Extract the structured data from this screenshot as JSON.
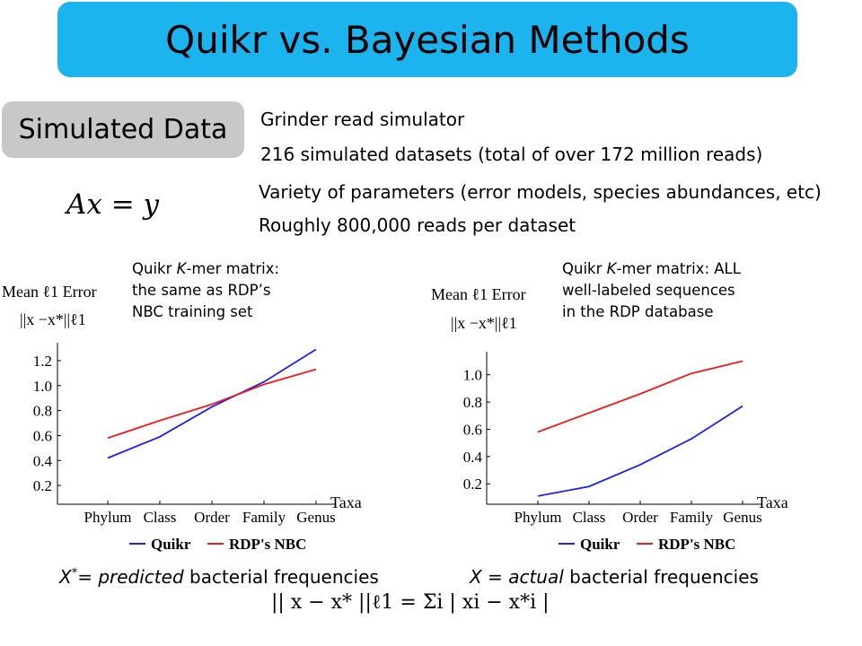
{
  "slide": {
    "title": "Quikr vs. Bayesian Methods",
    "section_tag": "Simulated Data",
    "equation": "Ax = y",
    "bullets": [
      "Grinder read simulator",
      "216 simulated datasets (total of over 172 million reads)",
      "Variety of parameters (error models, species abundances, etc)",
      "Roughly 800,000 reads per dataset"
    ],
    "captions": {
      "predicted_pre": "X",
      "predicted_sup": "*",
      "predicted_eq": "= ",
      "predicted_em": "predicted",
      "predicted_post": " bacterial frequencies",
      "actual_pre": "X = ",
      "actual_em": "actual",
      "actual_post": " bacterial frequencies"
    },
    "formula": "|| x − x* ||ℓ1 = Σi | xi − x*i |"
  },
  "chart_data": [
    {
      "type": "line",
      "note_line1_pre": "Quikr ",
      "note_line1_em": "K",
      "note_line1_post": "-mer matrix:",
      "note_line2": "the same as RDP’s",
      "note_line3": "NBC training set",
      "ylabel_line1": "Mean ℓ1 Error",
      "ylabel_line2": "||x −x*||ℓ1",
      "xlabel": "Taxa",
      "categories": [
        "Phylum",
        "Class",
        "Order",
        "Family",
        "Genus"
      ],
      "yticks": [
        "0.2",
        "0.4",
        "0.6",
        "0.8",
        "1.0",
        "1.2"
      ],
      "ylim": [
        0.05,
        1.3
      ],
      "legend_position": "bottom",
      "series": [
        {
          "name": "Quikr",
          "color": "#2020ee",
          "values": [
            0.42,
            0.59,
            0.83,
            1.03,
            1.29
          ]
        },
        {
          "name": "RDP's NBC",
          "color": "#ee1c1c",
          "values": [
            0.58,
            0.72,
            0.85,
            1.01,
            1.13
          ]
        }
      ]
    },
    {
      "type": "line",
      "note_line1_pre": "Quikr ",
      "note_line1_em": "K",
      "note_line1_post": "-mer matrix: ALL",
      "note_line2": "well-labeled sequences",
      "note_line3": "in the RDP database",
      "ylabel_line1": "Mean ℓ1 Error",
      "ylabel_line2": "||x −x*||ℓ1",
      "xlabel": "Taxa",
      "categories": [
        "Phylum",
        "Class",
        "Order",
        "Family",
        "Genus"
      ],
      "yticks": [
        "0.2",
        "0.4",
        "0.6",
        "0.8",
        "1.0"
      ],
      "ylim": [
        0.05,
        1.13
      ],
      "legend_position": "bottom",
      "series": [
        {
          "name": "Quikr",
          "color": "#2020ee",
          "values": [
            0.11,
            0.18,
            0.34,
            0.53,
            0.77
          ]
        },
        {
          "name": "RDP's NBC",
          "color": "#ee1c1c",
          "values": [
            0.58,
            0.72,
            0.86,
            1.01,
            1.1
          ]
        }
      ]
    }
  ]
}
